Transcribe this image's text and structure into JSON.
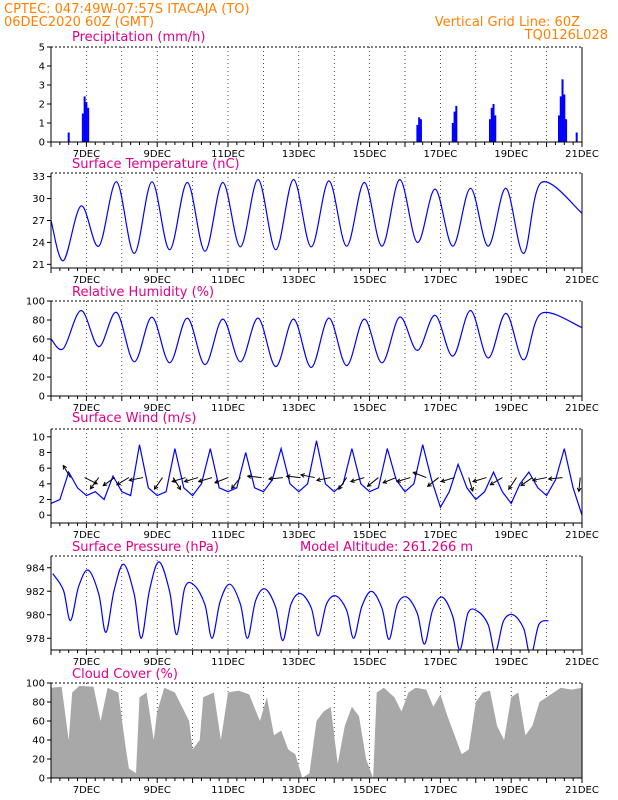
{
  "header": {
    "line1": "CPTEC:   047:49W-07:57S   ITACAJA (TO)",
    "line2": "06DEC2020 60Z (GMT)",
    "grid_note": "Vertical Grid Line: 60Z",
    "run_id": "TQ0126L028"
  },
  "colors": {
    "header": "#ff8000",
    "title": "#e0008a",
    "line": "#0000ff",
    "cloud": "#a8a8a8"
  },
  "chart_data": [
    {
      "id": "precip",
      "type": "bar",
      "title": "Precipitation (mm/h)",
      "ylim": [
        0,
        5
      ],
      "yticks": [
        0,
        1,
        2,
        3,
        4,
        5
      ],
      "x_day_range": [
        6.0,
        21.0
      ],
      "xtick_labels": [
        "7DEC",
        "9DEC",
        "11DEC",
        "13DEC",
        "15DEC",
        "17DEC",
        "19DEC",
        "21DEC"
      ],
      "bars": [
        [
          6.5,
          0.5
        ],
        [
          6.9,
          1.5
        ],
        [
          6.95,
          2.4
        ],
        [
          7.0,
          2.1
        ],
        [
          7.05,
          1.8
        ],
        [
          16.35,
          0.9
        ],
        [
          16.4,
          1.3
        ],
        [
          16.45,
          1.2
        ],
        [
          17.35,
          1.0
        ],
        [
          17.4,
          1.6
        ],
        [
          17.45,
          1.9
        ],
        [
          18.4,
          1.2
        ],
        [
          18.45,
          1.8
        ],
        [
          18.5,
          2.0
        ],
        [
          18.55,
          1.4
        ],
        [
          20.35,
          1.4
        ],
        [
          20.4,
          2.4
        ],
        [
          20.45,
          3.3
        ],
        [
          20.5,
          2.5
        ],
        [
          20.55,
          1.2
        ],
        [
          20.85,
          0.5
        ]
      ]
    },
    {
      "id": "temp",
      "type": "line",
      "title": "Surface Temperature (nC)",
      "ylim": [
        20.5,
        33.5
      ],
      "yticks": [
        21,
        24,
        27,
        30,
        33
      ],
      "x_day_range": [
        6.0,
        21.0
      ],
      "xtick_labels": [
        "7DEC",
        "9DEC",
        "11DEC",
        "13DEC",
        "15DEC",
        "17DEC",
        "19DEC",
        "21DEC"
      ],
      "daily_max": [
        29,
        32.3,
        32.3,
        32.2,
        32.2,
        32.6,
        32.6,
        32.4,
        32.2,
        32.6,
        31.3,
        31.4,
        31.4,
        32.2
      ],
      "daily_min": [
        21.5,
        23.5,
        22.5,
        23.0,
        22.8,
        23.4,
        23.0,
        23.4,
        23.5,
        23.5,
        24.0,
        23.5,
        23.5,
        22.5
      ],
      "tail_value": 28.0
    },
    {
      "id": "rh",
      "type": "line",
      "title": "Relative Humidity (%)",
      "ylim": [
        0,
        100
      ],
      "yticks": [
        0,
        20,
        40,
        60,
        80,
        100
      ],
      "x_day_range": [
        6.0,
        21.0
      ],
      "xtick_labels": [
        "7DEC",
        "9DEC",
        "11DEC",
        "13DEC",
        "15DEC",
        "17DEC",
        "19DEC",
        "21DEC"
      ],
      "daily_max": [
        90,
        88,
        83,
        82,
        81,
        82,
        81,
        82,
        81,
        83,
        85,
        90,
        87,
        87,
        92
      ],
      "daily_min": [
        50,
        52,
        36,
        35,
        33,
        36,
        31,
        30,
        32,
        35,
        48,
        42,
        40,
        38
      ],
      "tail_value": 72
    },
    {
      "id": "wind",
      "type": "line",
      "title": "Surface Wind (m/s)",
      "ylim": [
        -1,
        11
      ],
      "yticks": [
        0,
        2,
        4,
        6,
        8,
        10
      ],
      "x_day_range": [
        6.0,
        21.0
      ],
      "xtick_labels": [
        "7DEC",
        "9DEC",
        "11DEC",
        "13DEC",
        "15DEC",
        "17DEC",
        "19DEC",
        "21DEC"
      ],
      "speed": [
        [
          6.0,
          1.5
        ],
        [
          6.25,
          2.0
        ],
        [
          6.5,
          5.5
        ],
        [
          6.75,
          3.5
        ],
        [
          7.0,
          2.5
        ],
        [
          7.25,
          3.0
        ],
        [
          7.5,
          2.0
        ],
        [
          7.75,
          5.0
        ],
        [
          8.0,
          3.0
        ],
        [
          8.25,
          2.5
        ],
        [
          8.5,
          9.0
        ],
        [
          8.75,
          3.5
        ],
        [
          9.0,
          2.5
        ],
        [
          9.25,
          3.0
        ],
        [
          9.5,
          8.5
        ],
        [
          9.75,
          3.5
        ],
        [
          10.0,
          2.5
        ],
        [
          10.25,
          4.0
        ],
        [
          10.5,
          8.5
        ],
        [
          10.75,
          3.5
        ],
        [
          11.0,
          3.0
        ],
        [
          11.25,
          3.5
        ],
        [
          11.5,
          8.0
        ],
        [
          11.75,
          3.5
        ],
        [
          12.0,
          3.0
        ],
        [
          12.25,
          4.5
        ],
        [
          12.5,
          8.5
        ],
        [
          12.75,
          4.0
        ],
        [
          13.0,
          3.0
        ],
        [
          13.25,
          4.0
        ],
        [
          13.5,
          9.5
        ],
        [
          13.75,
          4.0
        ],
        [
          14.0,
          3.0
        ],
        [
          14.25,
          4.0
        ],
        [
          14.5,
          8.5
        ],
        [
          14.75,
          4.0
        ],
        [
          15.0,
          3.0
        ],
        [
          15.25,
          3.5
        ],
        [
          15.5,
          8.5
        ],
        [
          15.75,
          4.5
        ],
        [
          16.0,
          3.0
        ],
        [
          16.25,
          4.0
        ],
        [
          16.5,
          9.0
        ],
        [
          16.75,
          4.5
        ],
        [
          17.0,
          1.0
        ],
        [
          17.25,
          3.0
        ],
        [
          17.5,
          6.5
        ],
        [
          17.75,
          3.5
        ],
        [
          18.0,
          2.0
        ],
        [
          18.25,
          3.0
        ],
        [
          18.5,
          5.5
        ],
        [
          18.75,
          3.0
        ],
        [
          19.0,
          1.5
        ],
        [
          19.25,
          4.0
        ],
        [
          19.5,
          5.5
        ],
        [
          19.75,
          3.5
        ],
        [
          20.0,
          2.5
        ],
        [
          20.25,
          4.5
        ],
        [
          20.5,
          8.5
        ],
        [
          20.75,
          3.5
        ],
        [
          21.0,
          0.0
        ]
      ],
      "arrows": [
        [
          6.55,
          -0.6,
          1
        ],
        [
          6.95,
          1,
          -0.5
        ],
        [
          7.35,
          -0.6,
          -0.8
        ],
        [
          7.8,
          -1,
          -0.7
        ],
        [
          8.2,
          -1,
          -0.6
        ],
        [
          8.6,
          -1,
          -0.2
        ],
        [
          9.15,
          -0.7,
          -1
        ],
        [
          9.45,
          0.5,
          -0.8
        ],
        [
          9.8,
          -1,
          -0.3
        ],
        [
          10.15,
          -1,
          -0.3
        ],
        [
          10.55,
          -1,
          -0.3
        ],
        [
          11.0,
          -1,
          -0.4
        ],
        [
          11.35,
          -0.8,
          -1
        ],
        [
          11.95,
          -1,
          0.1
        ],
        [
          12.55,
          -1,
          -0.1
        ],
        [
          13.05,
          -1,
          0.1
        ],
        [
          13.45,
          -1,
          0.2
        ],
        [
          13.9,
          -1,
          -0.2
        ],
        [
          14.35,
          -0.6,
          -0.9
        ],
        [
          14.85,
          -1,
          -0.3
        ],
        [
          15.25,
          -1,
          -0.8
        ],
        [
          15.75,
          -1,
          -0.4
        ],
        [
          16.15,
          -1,
          -0.3
        ],
        [
          16.6,
          -1,
          0.4
        ],
        [
          16.95,
          -1,
          -0.8
        ],
        [
          17.4,
          -1,
          -0.3
        ],
        [
          17.8,
          0.3,
          -1
        ],
        [
          18.3,
          -1,
          -0.3
        ],
        [
          18.75,
          -1,
          -0.6
        ],
        [
          19.15,
          -0.6,
          -0.9
        ],
        [
          19.6,
          -1,
          -0.7
        ],
        [
          20.0,
          -1,
          -0.2
        ],
        [
          20.45,
          -1,
          -0.1
        ],
        [
          20.95,
          -0.1,
          -1
        ]
      ]
    },
    {
      "id": "pres",
      "type": "line",
      "title": "Surface Pressure (hPa)",
      "subtitle": "Model Altitude: 261.266 m",
      "ylim": [
        977,
        985
      ],
      "yticks": [
        978,
        980,
        982,
        984
      ],
      "x_day_range": [
        6.0,
        21.0
      ],
      "xtick_labels": [
        "7DEC",
        "9DEC",
        "11DEC",
        "13DEC",
        "15DEC",
        "17DEC",
        "19DEC",
        "21DEC"
      ],
      "daily_max": [
        983.5,
        983.8,
        984.3,
        984.5,
        982.5,
        982.6,
        982.2,
        981.8,
        981.6,
        982.0,
        981.5,
        981.5,
        980.3,
        980.0,
        979.5
      ],
      "daily_min": [
        979.5,
        978.5,
        978.0,
        978.3,
        978.0,
        978.0,
        977.8,
        978.2,
        978.0,
        977.9,
        977.5,
        977.0,
        976.8,
        976.5
      ]
    },
    {
      "id": "cloud",
      "type": "area",
      "title": "Cloud Cover (%)",
      "ylim": [
        0,
        100
      ],
      "yticks": [
        0,
        20,
        40,
        60,
        80,
        100
      ],
      "x_day_range": [
        6.0,
        21.0
      ],
      "xtick_labels": [
        "7DEC",
        "9DEC",
        "11DEC",
        "13DEC",
        "15DEC",
        "17DEC",
        "19DEC",
        "21DEC"
      ],
      "values": [
        [
          6.0,
          95
        ],
        [
          6.3,
          96
        ],
        [
          6.5,
          40
        ],
        [
          6.6,
          90
        ],
        [
          6.8,
          97
        ],
        [
          7.2,
          96
        ],
        [
          7.4,
          60
        ],
        [
          7.6,
          95
        ],
        [
          7.9,
          90
        ],
        [
          8.1,
          35
        ],
        [
          8.2,
          10
        ],
        [
          8.4,
          5
        ],
        [
          8.5,
          85
        ],
        [
          8.7,
          90
        ],
        [
          8.9,
          40
        ],
        [
          9.0,
          70
        ],
        [
          9.2,
          95
        ],
        [
          9.5,
          90
        ],
        [
          9.7,
          75
        ],
        [
          9.9,
          60
        ],
        [
          10.0,
          30
        ],
        [
          10.2,
          40
        ],
        [
          10.3,
          85
        ],
        [
          10.6,
          90
        ],
        [
          10.8,
          40
        ],
        [
          11.0,
          90
        ],
        [
          11.3,
          92
        ],
        [
          11.6,
          88
        ],
        [
          11.9,
          60
        ],
        [
          12.1,
          85
        ],
        [
          12.3,
          45
        ],
        [
          12.5,
          50
        ],
        [
          12.7,
          30
        ],
        [
          12.9,
          25
        ],
        [
          13.1,
          0
        ],
        [
          13.3,
          5
        ],
        [
          13.5,
          60
        ],
        [
          13.7,
          70
        ],
        [
          13.9,
          75
        ],
        [
          14.1,
          15
        ],
        [
          14.3,
          55
        ],
        [
          14.5,
          75
        ],
        [
          14.7,
          65
        ],
        [
          14.9,
          20
        ],
        [
          15.1,
          0
        ],
        [
          15.2,
          90
        ],
        [
          15.4,
          95
        ],
        [
          15.7,
          85
        ],
        [
          15.9,
          70
        ],
        [
          16.1,
          90
        ],
        [
          16.3,
          95
        ],
        [
          16.6,
          93
        ],
        [
          16.8,
          75
        ],
        [
          17.0,
          88
        ],
        [
          17.2,
          65
        ],
        [
          17.4,
          45
        ],
        [
          17.6,
          25
        ],
        [
          17.8,
          30
        ],
        [
          18.0,
          80
        ],
        [
          18.2,
          90
        ],
        [
          18.4,
          92
        ],
        [
          18.6,
          55
        ],
        [
          18.8,
          40
        ],
        [
          19.0,
          85
        ],
        [
          19.2,
          90
        ],
        [
          19.4,
          45
        ],
        [
          19.6,
          55
        ],
        [
          19.8,
          80
        ],
        [
          20.0,
          85
        ],
        [
          20.2,
          90
        ],
        [
          20.4,
          95
        ],
        [
          20.7,
          93
        ],
        [
          21.0,
          95
        ]
      ]
    }
  ]
}
